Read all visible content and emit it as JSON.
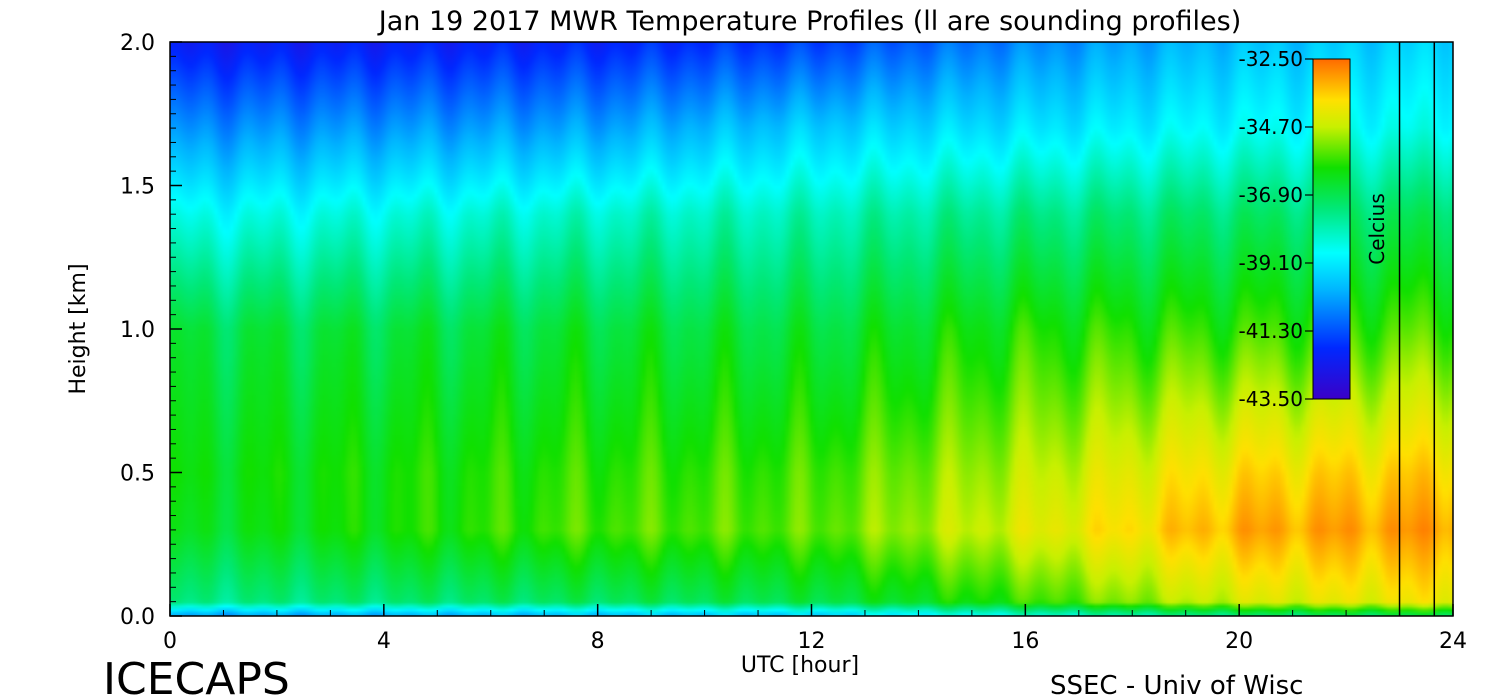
{
  "chart_data": {
    "type": "heatmap",
    "title": "Jan 19 2017 MWR Temperature Profiles (ll are sounding profiles)",
    "xlabel": "UTC [hour]",
    "ylabel": "Height [km]",
    "xlim": [
      0,
      24
    ],
    "ylim": [
      0,
      2.0
    ],
    "x_ticks": [
      "0",
      "4",
      "8",
      "12",
      "16",
      "20",
      "24"
    ],
    "y_ticks": [
      "0.0",
      "0.5",
      "1.0",
      "1.5",
      "2.0"
    ],
    "colorbar": {
      "label": "Celcius",
      "ticks": [
        "-32.50",
        "-34.70",
        "-36.90",
        "-39.10",
        "-41.30",
        "-43.50"
      ],
      "range": [
        -43.5,
        -32.5
      ]
    },
    "sounding_profiles_hours": [
      23.0,
      23.65
    ],
    "approx_temperature_field": {
      "heights_km": [
        0.0,
        0.05,
        0.3,
        0.5,
        1.0,
        1.4,
        1.7,
        2.0
      ],
      "rows_by_hour": [
        {
          "hour": 0,
          "celsius": [
            -40.5,
            -37.5,
            -36.5,
            -36.3,
            -36.8,
            -38.7,
            -40.5,
            -42.3
          ]
        },
        {
          "hour": 8,
          "celsius": [
            -40.0,
            -37.0,
            -35.6,
            -35.8,
            -36.6,
            -38.2,
            -40.2,
            -42.0
          ]
        },
        {
          "hour": 12,
          "celsius": [
            -39.8,
            -36.8,
            -35.5,
            -35.7,
            -36.7,
            -38.0,
            -39.6,
            -41.6
          ]
        },
        {
          "hour": 16,
          "celsius": [
            -38.5,
            -35.8,
            -34.4,
            -34.8,
            -36.0,
            -37.5,
            -39.2,
            -40.6
          ]
        },
        {
          "hour": 20,
          "celsius": [
            -37.5,
            -34.5,
            -33.2,
            -33.8,
            -35.8,
            -37.2,
            -38.8,
            -39.8
          ]
        },
        {
          "hour": 24,
          "celsius": [
            -37.0,
            -34.0,
            -33.0,
            -33.6,
            -35.6,
            -37.0,
            -38.6,
            -39.4
          ]
        }
      ]
    },
    "annotations": [
      "ICECAPS",
      "SSEC - Univ of Wisc"
    ]
  }
}
